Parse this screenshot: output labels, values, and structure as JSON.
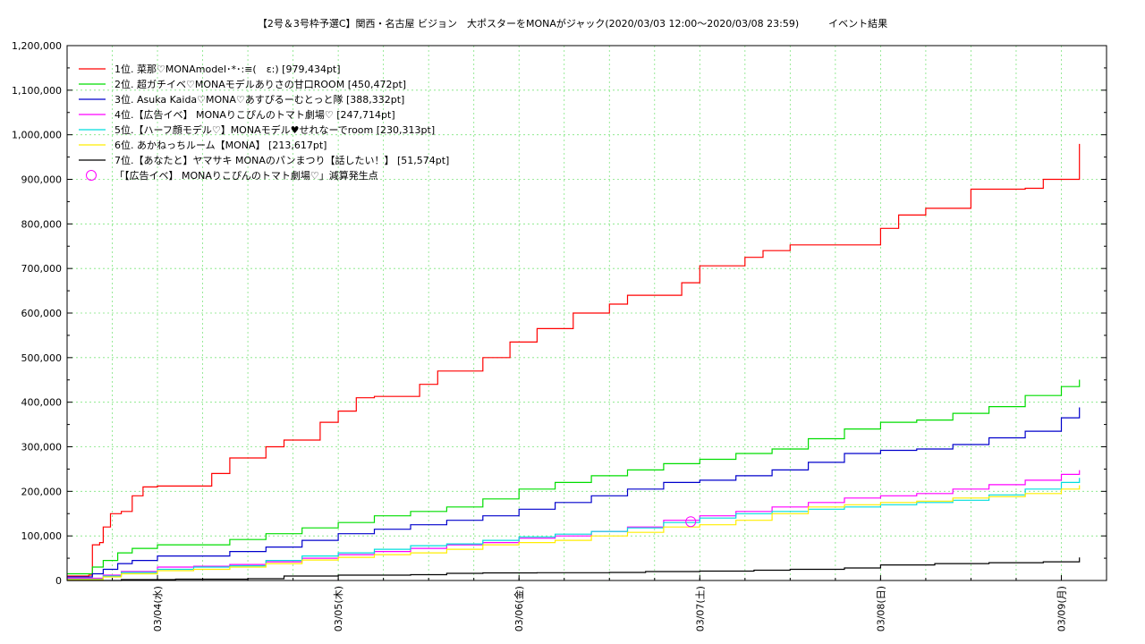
{
  "title": "【2号＆3号枠予選C】関西・名古屋 ビジョン　大ポスターをMONAがジャック(2020/03/03 12:00〜2020/03/08 23:59)　　　イベント結果",
  "chart_data": {
    "type": "line",
    "ylim": [
      0,
      1200000
    ],
    "yticks": [
      0,
      100000,
      200000,
      300000,
      400000,
      500000,
      600000,
      700000,
      800000,
      900000,
      1000000,
      1100000,
      1200000
    ],
    "ytick_labels": [
      "0",
      "100,000",
      "200,000",
      "300,000",
      "400,000",
      "500,000",
      "600,000",
      "700,000",
      "800,000",
      "900,000",
      "1,000,000",
      "1,100,000",
      "1,200,000"
    ],
    "xlim": [
      0.0,
      5.75
    ],
    "xticks": [
      0.5,
      1.5,
      2.5,
      3.5,
      4.5,
      5.5
    ],
    "xtick_labels": [
      "03/04(水)",
      "03/05(木)",
      "03/06(金)",
      "03/07(土)",
      "03/08(日)",
      "03/09(月)"
    ],
    "grid": true,
    "legend_position": "top-left",
    "series": [
      {
        "name": "1位. 菜那♡MONAmodel･*･:≡(　ε:) [979,434pt]",
        "color": "#ff0000",
        "x": [
          0.0,
          0.1,
          0.12,
          0.14,
          0.18,
          0.2,
          0.24,
          0.3,
          0.36,
          0.42,
          0.5,
          0.6,
          0.8,
          0.9,
          1.0,
          1.1,
          1.2,
          1.4,
          1.5,
          1.6,
          1.7,
          1.8,
          1.95,
          2.05,
          2.2,
          2.3,
          2.45,
          2.6,
          2.8,
          3.0,
          3.1,
          3.4,
          3.5,
          3.6,
          3.75,
          3.85,
          4.0,
          4.1,
          4.3,
          4.5,
          4.6,
          4.75,
          5.0,
          5.2,
          5.3,
          5.4,
          5.6
        ],
        "y": [
          10000,
          10000,
          12000,
          80000,
          85000,
          120000,
          150000,
          155000,
          190000,
          210000,
          212000,
          212000,
          240000,
          275000,
          275000,
          300000,
          315000,
          355000,
          380000,
          410000,
          413000,
          413000,
          440000,
          470000,
          470000,
          500000,
          535000,
          565000,
          600000,
          620000,
          640000,
          668000,
          706000,
          706000,
          725000,
          740000,
          753000,
          753000,
          753000,
          790000,
          820000,
          835000,
          878000,
          878000,
          880000,
          900000,
          979434
        ]
      },
      {
        "name": "2位. 超ガチイベ♡MONAモデルありさの甘口ROOM [450,472pt]",
        "color": "#00dd00",
        "x": [
          0.0,
          0.1,
          0.14,
          0.2,
          0.28,
          0.36,
          0.5,
          0.7,
          0.9,
          1.1,
          1.3,
          1.5,
          1.7,
          1.9,
          2.1,
          2.3,
          2.5,
          2.7,
          2.9,
          3.1,
          3.3,
          3.5,
          3.7,
          3.9,
          4.1,
          4.3,
          4.5,
          4.7,
          4.9,
          5.1,
          5.3,
          5.5,
          5.6
        ],
        "y": [
          15000,
          15000,
          30000,
          45000,
          62000,
          72000,
          80000,
          80000,
          92000,
          105000,
          118000,
          130000,
          145000,
          155000,
          165000,
          183000,
          205000,
          220000,
          235000,
          248000,
          262000,
          272000,
          285000,
          295000,
          318000,
          340000,
          355000,
          360000,
          375000,
          390000,
          415000,
          435000,
          450472
        ]
      },
      {
        "name": "3位. Asuka Kaida♡MONA♡あすぴるーむとっと隊 [388,332pt]",
        "color": "#0000cc",
        "x": [
          0.0,
          0.1,
          0.14,
          0.2,
          0.28,
          0.36,
          0.5,
          0.7,
          0.9,
          1.1,
          1.3,
          1.5,
          1.7,
          1.9,
          2.1,
          2.3,
          2.5,
          2.7,
          2.9,
          3.1,
          3.3,
          3.5,
          3.7,
          3.9,
          4.1,
          4.3,
          4.5,
          4.7,
          4.9,
          5.1,
          5.3,
          5.5,
          5.6
        ],
        "y": [
          8000,
          8000,
          15000,
          25000,
          38000,
          45000,
          55000,
          55000,
          65000,
          75000,
          90000,
          105000,
          115000,
          125000,
          135000,
          145000,
          160000,
          175000,
          190000,
          205000,
          220000,
          225000,
          235000,
          248000,
          265000,
          285000,
          292000,
          295000,
          305000,
          320000,
          335000,
          365000,
          388332
        ]
      },
      {
        "name": "4位.【広告イベ】 MONAりこぴんのトマト劇場♡ [247,714pt]",
        "color": "#ff00ff",
        "x": [
          0.0,
          0.1,
          0.2,
          0.3,
          0.5,
          0.7,
          0.9,
          1.1,
          1.3,
          1.5,
          1.7,
          1.9,
          2.1,
          2.3,
          2.5,
          2.7,
          2.9,
          3.1,
          3.3,
          3.5,
          3.7,
          3.9,
          4.1,
          4.3,
          4.5,
          4.7,
          4.9,
          5.1,
          5.3,
          5.5,
          5.6
        ],
        "y": [
          5000,
          5000,
          12000,
          20000,
          30000,
          32000,
          36000,
          42000,
          50000,
          58000,
          65000,
          72000,
          80000,
          85000,
          95000,
          100000,
          110000,
          120000,
          135000,
          145000,
          155000,
          165000,
          175000,
          185000,
          190000,
          195000,
          205000,
          215000,
          225000,
          238000,
          247714
        ]
      },
      {
        "name": "5位.【ハーフ顔モデル♡】MONAモデル♥せれなーでroom [230,313pt]",
        "color": "#00dddd",
        "x": [
          0.0,
          0.1,
          0.2,
          0.3,
          0.5,
          0.7,
          0.9,
          1.1,
          1.3,
          1.5,
          1.7,
          1.9,
          2.1,
          2.3,
          2.5,
          2.7,
          2.9,
          3.1,
          3.3,
          3.5,
          3.7,
          3.9,
          4.1,
          4.3,
          4.5,
          4.7,
          4.9,
          5.1,
          5.3,
          5.5,
          5.6
        ],
        "y": [
          3000,
          3000,
          10000,
          18000,
          25000,
          30000,
          33000,
          45000,
          55000,
          62000,
          70000,
          78000,
          82000,
          90000,
          98000,
          104000,
          110000,
          118000,
          130000,
          140000,
          150000,
          155000,
          160000,
          165000,
          170000,
          175000,
          180000,
          192000,
          205000,
          220000,
          230313
        ]
      },
      {
        "name": "6位. あかねっちルーム【MONA】 [213,617pt]",
        "color": "#ffee00",
        "x": [
          0.0,
          0.1,
          0.2,
          0.3,
          0.5,
          0.7,
          0.9,
          1.1,
          1.3,
          1.5,
          1.7,
          1.9,
          2.1,
          2.3,
          2.5,
          2.7,
          2.9,
          3.1,
          3.3,
          3.5,
          3.7,
          3.9,
          4.1,
          4.3,
          4.5,
          4.7,
          4.9,
          5.1,
          5.3,
          5.5,
          5.6
        ],
        "y": [
          2000,
          2000,
          8000,
          15000,
          22000,
          25000,
          30000,
          38000,
          46000,
          52000,
          58000,
          62000,
          70000,
          80000,
          85000,
          90000,
          100000,
          108000,
          120000,
          125000,
          135000,
          150000,
          165000,
          170000,
          175000,
          178000,
          185000,
          188000,
          195000,
          205000,
          213617
        ]
      },
      {
        "name": "7位.【あなたと】ヤマサキ MONAのパンまつり【話したい！】 [51,574pt]",
        "color": "#000000",
        "x": [
          0.0,
          0.2,
          0.3,
          0.6,
          1.0,
          1.2,
          1.5,
          1.9,
          2.1,
          2.3,
          2.6,
          3.0,
          3.2,
          3.5,
          3.8,
          4.0,
          4.3,
          4.5,
          4.8,
          5.1,
          5.4,
          5.6
        ],
        "y": [
          0,
          0,
          2000,
          3000,
          4000,
          10000,
          12000,
          13000,
          16000,
          17000,
          17500,
          18000,
          20000,
          21000,
          23000,
          25000,
          28000,
          35000,
          38000,
          40000,
          42000,
          51574
        ]
      }
    ],
    "markers": [
      {
        "name": "「【広告イベ】 MONAりこぴんのトマト劇場♡」減算発生点",
        "color": "#ff00ff",
        "x": 3.45,
        "y": 132000
      }
    ]
  }
}
